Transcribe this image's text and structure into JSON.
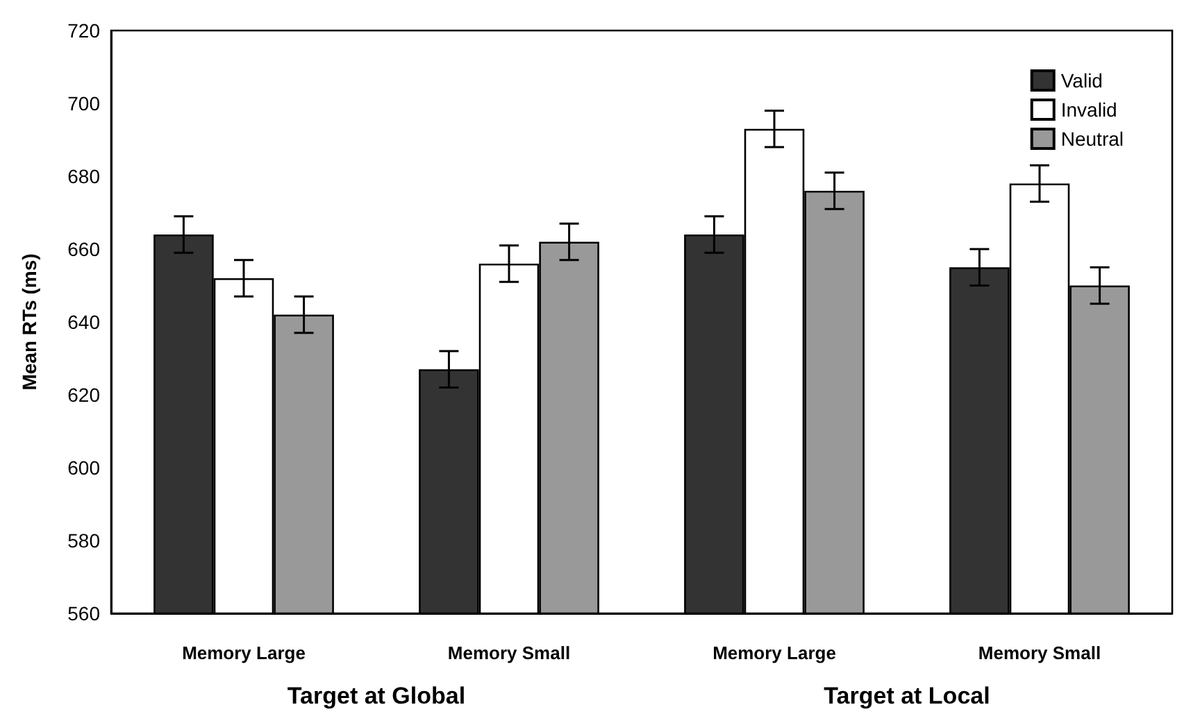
{
  "chart_data": {
    "type": "bar",
    "ylabel": "Mean RTs (ms)",
    "categories": [
      "Memory Large",
      "Memory Small",
      "Memory Large",
      "Memory Small"
    ],
    "series": [
      {
        "name": "Valid",
        "color": "#333333",
        "values": [
          664,
          627,
          664,
          655
        ],
        "errors": [
          5,
          5,
          5,
          5
        ]
      },
      {
        "name": "Invalid",
        "color": "#ffffff",
        "values": [
          652,
          656,
          693,
          678
        ],
        "errors": [
          5,
          5,
          5,
          5
        ]
      },
      {
        "name": "Neutral",
        "color": "#999999",
        "values": [
          642,
          662,
          676,
          650
        ],
        "errors": [
          5,
          5,
          5,
          5
        ]
      }
    ],
    "annotations": [
      "Target at Global",
      "Target at Local"
    ],
    "ylim": [
      560,
      720
    ],
    "yticks": [
      560,
      580,
      600,
      620,
      640,
      660,
      680,
      700,
      720
    ],
    "grid": false,
    "legend": "top right"
  }
}
